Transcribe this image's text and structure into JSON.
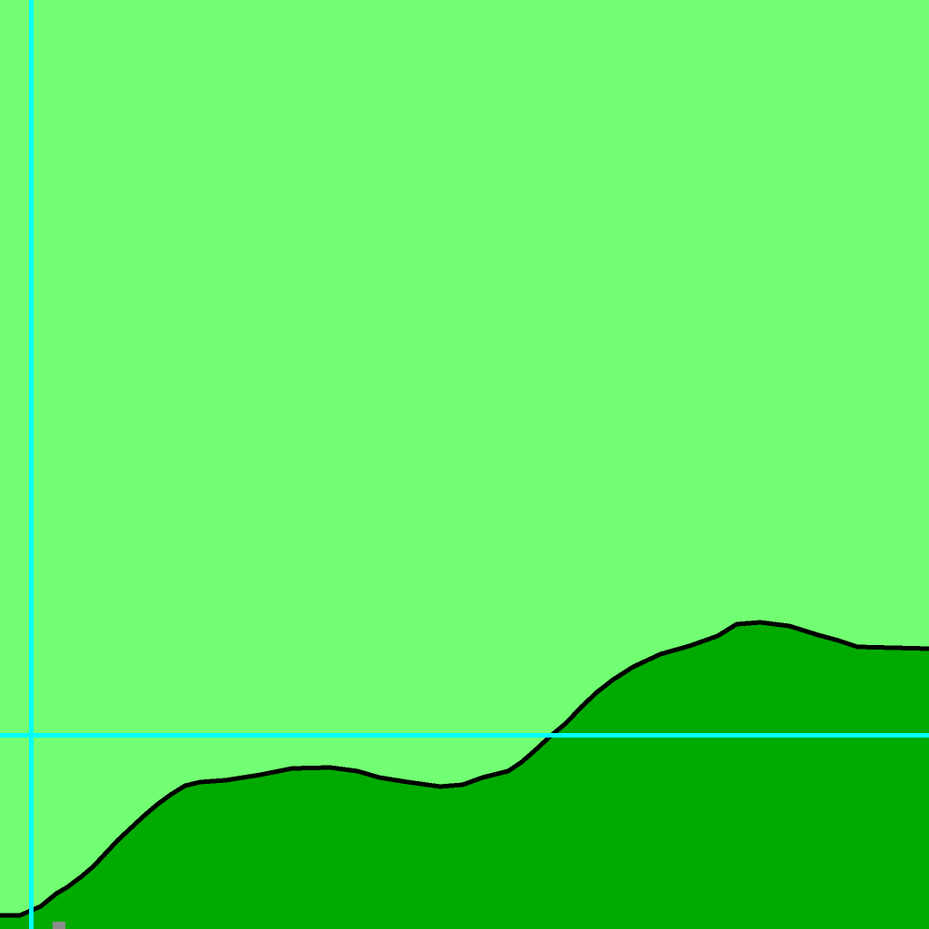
{
  "window": {
    "title": ""
  },
  "colors": {
    "background": "#73ff73",
    "fill": "#00aa00",
    "outline": "#000000",
    "guide": "#00ffff",
    "marker": "#8c8c8c"
  },
  "icons": {
    "marker": "small-square-marker"
  }
}
